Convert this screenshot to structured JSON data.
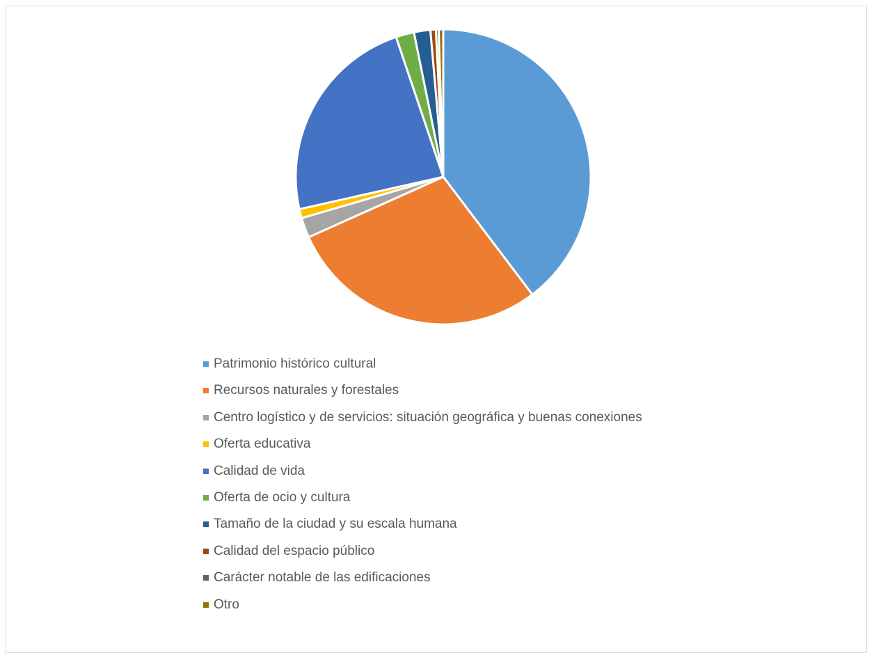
{
  "chart_data": {
    "type": "pie",
    "title": "",
    "legend_position": "bottom",
    "slices": [
      {
        "label": "Patrimonio histórico cultural",
        "value": 39.8,
        "color": "#5B9BD5"
      },
      {
        "label": "Recursos naturales y forestales",
        "value": 28.7,
        "color": "#ED7D31"
      },
      {
        "label": "Centro logístico y de servicios: situación geográfica y buenas conexiones",
        "value": 2.2,
        "color": "#A5A5A5"
      },
      {
        "label": "Oferta educativa",
        "value": 1.0,
        "color": "#FFC000"
      },
      {
        "label": "Calidad de vida",
        "value": 23.4,
        "color": "#4472C4"
      },
      {
        "label": "Oferta de ocio y cultura",
        "value": 2.0,
        "color": "#70AD47"
      },
      {
        "label": "Tamaño de la ciudad y su escala humana",
        "value": 1.8,
        "color": "#255E91"
      },
      {
        "label": "Calidad del espacio público",
        "value": 0.6,
        "color": "#9E480E"
      },
      {
        "label": "Carácter notable de las edificaciones",
        "value": 0.3,
        "color": "#636363"
      },
      {
        "label": "Otro",
        "value": 0.5,
        "color": "#997300"
      }
    ]
  }
}
